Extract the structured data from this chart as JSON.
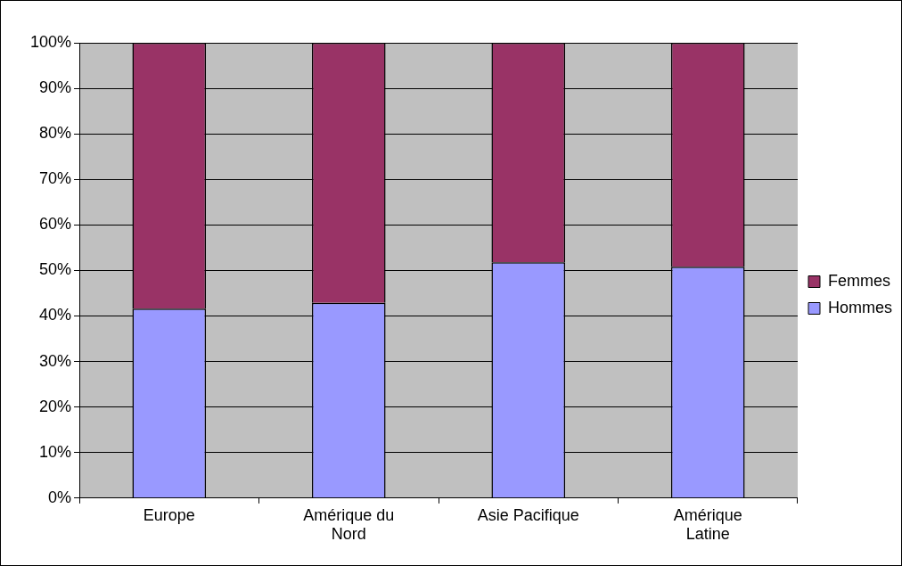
{
  "chart_data": {
    "type": "bar",
    "stacked": true,
    "categories": [
      "Europe",
      "Amérique du Nord",
      "Asie Pacifique",
      "Amérique Latine"
    ],
    "series": [
      {
        "name": "Hommes",
        "color": "#9999ff",
        "values": [
          41.6,
          42.9,
          51.8,
          50.8
        ]
      },
      {
        "name": "Femmes",
        "color": "#993366",
        "values": [
          58.4,
          57.1,
          48.2,
          49.2
        ]
      }
    ],
    "ylim": [
      0,
      100
    ],
    "yticks": [
      {
        "value": 0,
        "label": "0%"
      },
      {
        "value": 10,
        "label": "10%"
      },
      {
        "value": 20,
        "label": "20%"
      },
      {
        "value": 30,
        "label": "30%"
      },
      {
        "value": 40,
        "label": "40%"
      },
      {
        "value": 50,
        "label": "50%"
      },
      {
        "value": 60,
        "label": "60%"
      },
      {
        "value": 70,
        "label": "70%"
      },
      {
        "value": 80,
        "label": "80%"
      },
      {
        "value": 90,
        "label": "90%"
      },
      {
        "value": 100,
        "label": "100%"
      }
    ],
    "grid": "y",
    "legend": "right"
  }
}
